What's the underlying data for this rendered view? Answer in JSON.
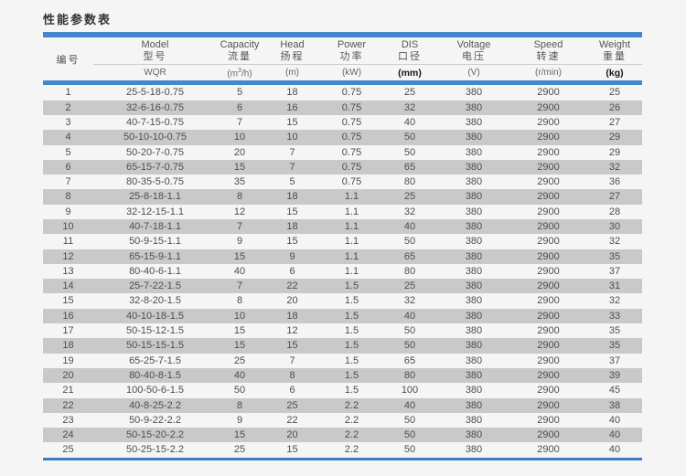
{
  "title": "性能参数表",
  "table": {
    "columns": [
      {
        "en": "",
        "zh": "编号",
        "unit": ""
      },
      {
        "en": "Model",
        "zh": "型号",
        "unit": "WQR"
      },
      {
        "en": "Capacity",
        "zh": "流量",
        "unit": "(m³/h)"
      },
      {
        "en": "Head",
        "zh": "扬程",
        "unit": "(m)"
      },
      {
        "en": "Power",
        "zh": "功率",
        "unit": "(kW)"
      },
      {
        "en": "DIS",
        "zh": "口径",
        "unit": "(mm)"
      },
      {
        "en": "Voltage",
        "zh": "电压",
        "unit": "(V)"
      },
      {
        "en": "Speed",
        "zh": "转速",
        "unit": "(r/min)"
      },
      {
        "en": "Weight",
        "zh": "重量",
        "unit": "(kg)"
      }
    ],
    "rows": [
      [
        "1",
        "25-5-18-0.75",
        "5",
        "18",
        "0.75",
        "25",
        "380",
        "2900",
        "25"
      ],
      [
        "2",
        "32-6-16-0.75",
        "6",
        "16",
        "0.75",
        "32",
        "380",
        "2900",
        "26"
      ],
      [
        "3",
        "40-7-15-0.75",
        "7",
        "15",
        "0.75",
        "40",
        "380",
        "2900",
        "27"
      ],
      [
        "4",
        "50-10-10-0.75",
        "10",
        "10",
        "0.75",
        "50",
        "380",
        "2900",
        "29"
      ],
      [
        "5",
        "50-20-7-0.75",
        "20",
        "7",
        "0.75",
        "50",
        "380",
        "2900",
        "29"
      ],
      [
        "6",
        "65-15-7-0.75",
        "15",
        "7",
        "0.75",
        "65",
        "380",
        "2900",
        "32"
      ],
      [
        "7",
        "80-35-5-0.75",
        "35",
        "5",
        "0.75",
        "80",
        "380",
        "2900",
        "36"
      ],
      [
        "8",
        "25-8-18-1.1",
        "8",
        "18",
        "1.1",
        "25",
        "380",
        "2900",
        "27"
      ],
      [
        "9",
        "32-12-15-1.1",
        "12",
        "15",
        "1.1",
        "32",
        "380",
        "2900",
        "28"
      ],
      [
        "10",
        "40-7-18-1.1",
        "7",
        "18",
        "1.1",
        "40",
        "380",
        "2900",
        "30"
      ],
      [
        "11",
        "50-9-15-1.1",
        "9",
        "15",
        "1.1",
        "50",
        "380",
        "2900",
        "32"
      ],
      [
        "12",
        "65-15-9-1.1",
        "15",
        "9",
        "1.1",
        "65",
        "380",
        "2900",
        "35"
      ],
      [
        "13",
        "80-40-6-1.1",
        "40",
        "6",
        "1.1",
        "80",
        "380",
        "2900",
        "37"
      ],
      [
        "14",
        "25-7-22-1.5",
        "7",
        "22",
        "1.5",
        "25",
        "380",
        "2900",
        "31"
      ],
      [
        "15",
        "32-8-20-1.5",
        "8",
        "20",
        "1.5",
        "32",
        "380",
        "2900",
        "32"
      ],
      [
        "16",
        "40-10-18-1.5",
        "10",
        "18",
        "1.5",
        "40",
        "380",
        "2900",
        "33"
      ],
      [
        "17",
        "50-15-12-1.5",
        "15",
        "12",
        "1.5",
        "50",
        "380",
        "2900",
        "35"
      ],
      [
        "18",
        "50-15-15-1.5",
        "15",
        "15",
        "1.5",
        "50",
        "380",
        "2900",
        "35"
      ],
      [
        "19",
        "65-25-7-1.5",
        "25",
        "7",
        "1.5",
        "65",
        "380",
        "2900",
        "37"
      ],
      [
        "20",
        "80-40-8-1.5",
        "40",
        "8",
        "1.5",
        "80",
        "380",
        "2900",
        "39"
      ],
      [
        "21",
        "100-50-6-1.5",
        "50",
        "6",
        "1.5",
        "100",
        "380",
        "2900",
        "45"
      ],
      [
        "22",
        "40-8-25-2.2",
        "8",
        "25",
        "2.2",
        "40",
        "380",
        "2900",
        "38"
      ],
      [
        "23",
        "50-9-22-2.2",
        "9",
        "22",
        "2.2",
        "50",
        "380",
        "2900",
        "40"
      ],
      [
        "24",
        "50-15-20-2.2",
        "15",
        "20",
        "2.2",
        "50",
        "380",
        "2900",
        "40"
      ],
      [
        "25",
        "50-25-15-2.2",
        "25",
        "15",
        "2.2",
        "50",
        "380",
        "2900",
        "40"
      ]
    ]
  },
  "colors": {
    "accent_blue": "#4487ce",
    "bottom_line_blue": "#3d7dc2",
    "shaded_row_gray": "#c9c9c9",
    "page_background": "#f5f5f6"
  }
}
